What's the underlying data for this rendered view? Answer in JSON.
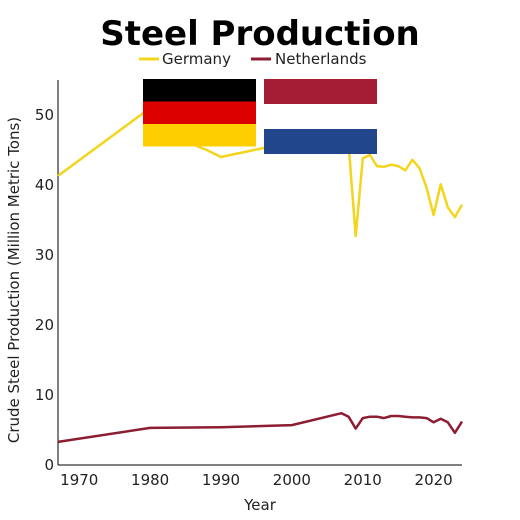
{
  "chart_data": {
    "type": "line",
    "title": "Steel Production",
    "xlabel": "Year",
    "ylabel": "Crude Steel Production (Million Metric Tons)",
    "xlim": [
      1967,
      2024
    ],
    "ylim": [
      0,
      55
    ],
    "x_ticks": [
      1970,
      1980,
      1990,
      2000,
      2010,
      2020
    ],
    "y_ticks": [
      0,
      10,
      20,
      30,
      40,
      50
    ],
    "grid": false,
    "legend_position": "top-center",
    "series": [
      {
        "name": "Germany",
        "color": "#f2d51c",
        "flag": "germany-flag",
        "x": [
          1967,
          1980,
          1983,
          1988,
          1990,
          1997,
          2000,
          2003,
          2006,
          2007,
          2008,
          2009,
          2010,
          2011,
          2012,
          2013,
          2014,
          2015,
          2016,
          2017,
          2018,
          2019,
          2020,
          2021,
          2022,
          2023,
          2024
        ],
        "values": [
          41.3,
          51.0,
          47.0,
          45.0,
          44.0,
          45.5,
          46.5,
          47.5,
          49.0,
          48.5,
          45.8,
          32.7,
          43.8,
          44.3,
          42.7,
          42.6,
          42.9,
          42.7,
          42.1,
          43.6,
          42.4,
          39.6,
          35.7,
          40.1,
          36.8,
          35.4,
          37.2
        ]
      },
      {
        "name": "Netherlands",
        "color": "#8c1d33",
        "flag": "netherlands-flag",
        "x": [
          1967,
          1980,
          1990,
          2000,
          2007,
          2008,
          2009,
          2010,
          2011,
          2012,
          2013,
          2014,
          2015,
          2016,
          2017,
          2018,
          2019,
          2020,
          2021,
          2022,
          2023,
          2024
        ],
        "values": [
          3.3,
          5.3,
          5.4,
          5.7,
          7.4,
          6.9,
          5.2,
          6.7,
          6.9,
          6.9,
          6.7,
          7.0,
          7.0,
          6.9,
          6.8,
          6.8,
          6.7,
          6.1,
          6.6,
          6.1,
          4.6,
          6.2
        ]
      }
    ]
  }
}
